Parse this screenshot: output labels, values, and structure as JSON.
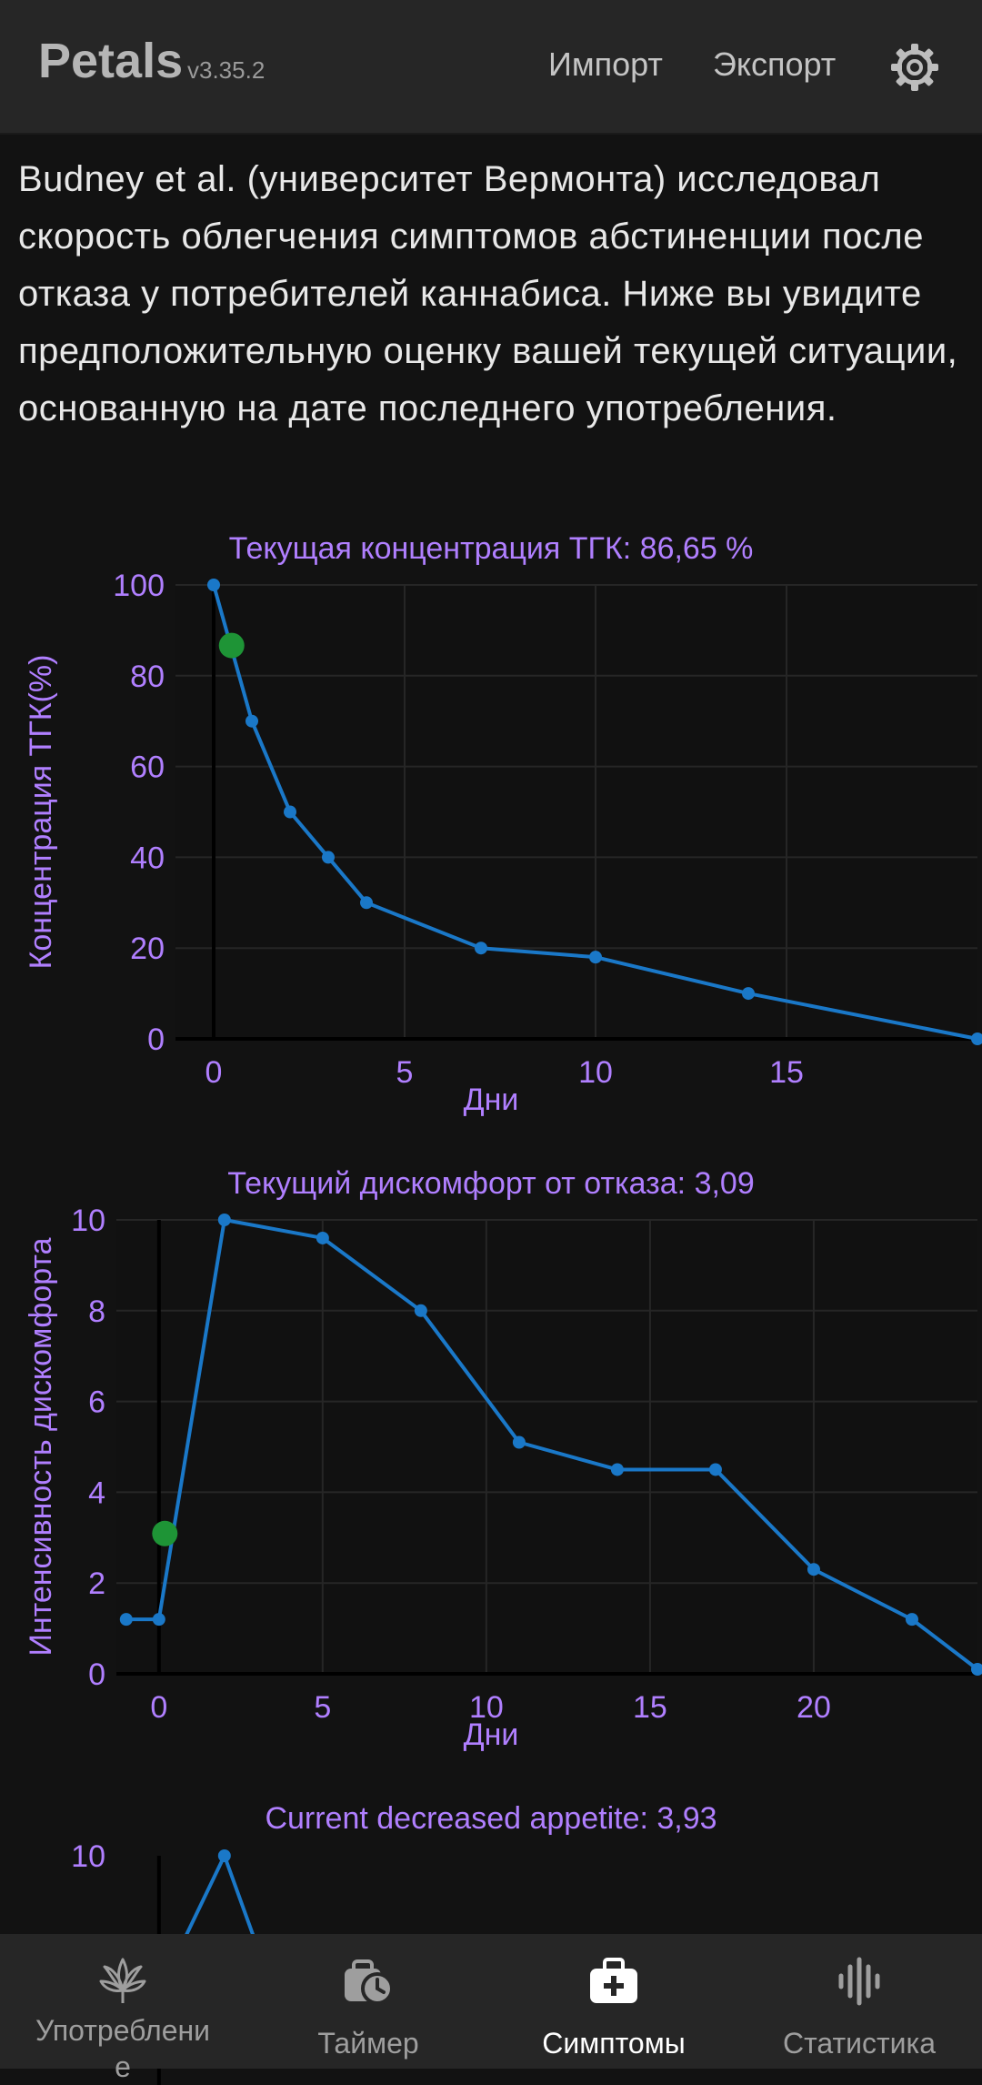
{
  "app": {
    "title": "Petals",
    "version": "v3.35.2",
    "import_label": "Импорт",
    "export_label": "Экспорт",
    "settings_icon": "gear-icon"
  },
  "intro_text": "Budney et al. (университет Вермонта) исследовал скорость облегчения симптомов абстиненции после отказа у потребителей каннабиса. Ниже вы увидите предположительную оценку вашей текущей ситуации, основанную на дате последнего употребления.",
  "colors": {
    "accent": "#b07fff",
    "line": "#1a78c8",
    "current": "#1e9436",
    "background": "#121212",
    "bar": "#262626"
  },
  "chart_data": [
    {
      "type": "line",
      "title": "Текущая концентрация ТГК: 86,65 %",
      "xlabel": "Дни",
      "ylabel": "Концентрация ТГК(%)",
      "x": [
        0,
        1,
        2,
        3,
        4,
        7,
        10,
        14,
        20
      ],
      "y": [
        100,
        70,
        50,
        40,
        30,
        20,
        18,
        10,
        0
      ],
      "current_point": {
        "x": 0.47,
        "y": 86.65
      },
      "xlim": [
        -1,
        20
      ],
      "ylim": [
        0,
        100
      ],
      "xticks": [
        "0",
        "5",
        "10",
        "15"
      ],
      "yticks": [
        "0",
        "20",
        "40",
        "60",
        "80",
        "100"
      ],
      "grid": true
    },
    {
      "type": "line",
      "title": "Текущий дискомфорт от отказа: 3,09",
      "xlabel": "Дни",
      "ylabel": "Интенсивность дискомфорта",
      "x": [
        -1,
        0,
        2,
        5,
        8,
        11,
        14,
        17,
        20,
        23,
        25
      ],
      "y": [
        1.2,
        1.2,
        10,
        9.6,
        8,
        5.1,
        4.5,
        4.5,
        2.3,
        1.2,
        0.1
      ],
      "current_point": {
        "x": 0.18,
        "y": 3.09
      },
      "xlim": [
        -1.3,
        25
      ],
      "ylim": [
        0,
        10
      ],
      "xticks": [
        "0",
        "5",
        "10",
        "15",
        "20"
      ],
      "yticks": [
        "0",
        "2",
        "4",
        "6",
        "8",
        "10"
      ],
      "grid": true
    },
    {
      "type": "line",
      "title": "Current decreased appetite: 3,93",
      "yticks": [
        "10"
      ],
      "x": [
        0,
        2,
        3.5
      ],
      "y": [
        7,
        10,
        7
      ],
      "xlim": [
        -1.3,
        25
      ],
      "ylim": [
        0,
        10
      ]
    }
  ],
  "nav": [
    {
      "label": "Употребление",
      "icon": "cannabis-leaf-icon"
    },
    {
      "label": "Таймер",
      "icon": "timer-icon"
    },
    {
      "label": "Симптомы",
      "icon": "first-aid-kit-icon"
    },
    {
      "label": "Статистика",
      "icon": "statistics-icon"
    }
  ]
}
